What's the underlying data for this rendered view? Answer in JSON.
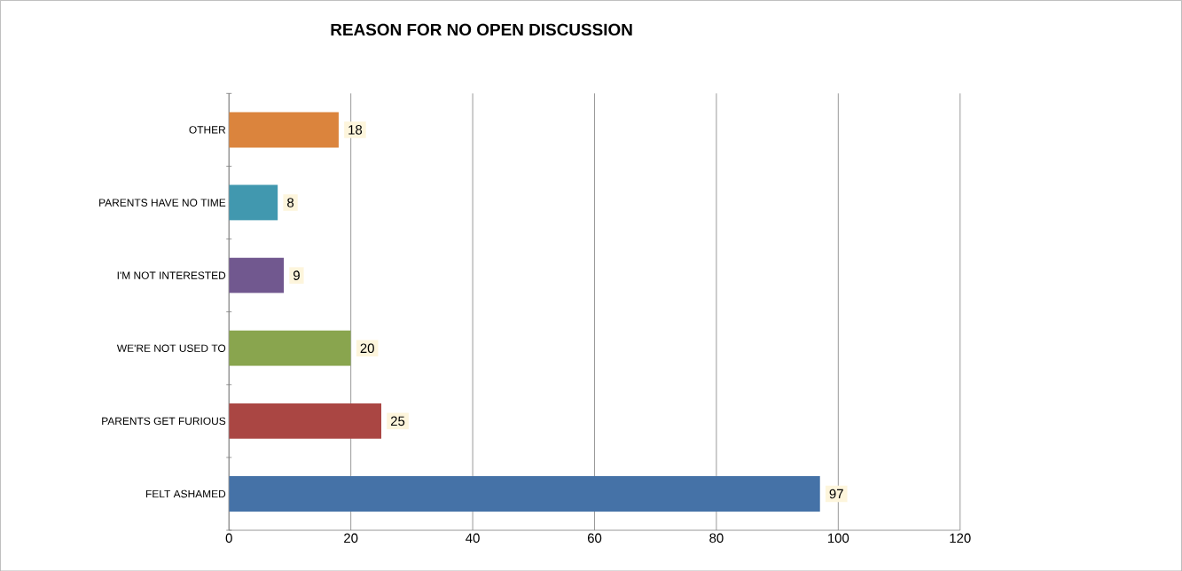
{
  "chart_data": {
    "type": "bar",
    "orientation": "horizontal",
    "title": "REASON FOR NO  OPEN DISCUSSION",
    "categories": [
      "OTHER",
      "PARENTS HAVE NO TIME",
      "I'M NOT INTERESTED",
      "WE'RE NOT USED TO",
      "PARENTS GET FURIOUS",
      "FELT ASHAMED"
    ],
    "values": [
      18,
      8,
      9,
      20,
      25,
      97
    ],
    "colors": [
      "#db843d",
      "#4198af",
      "#71588f",
      "#89a54e",
      "#aa4643",
      "#4572a7"
    ],
    "xlim": [
      0,
      120
    ],
    "xticks": [
      0,
      20,
      40,
      60,
      80,
      100,
      120
    ],
    "grid": "x",
    "data_labels": true
  }
}
